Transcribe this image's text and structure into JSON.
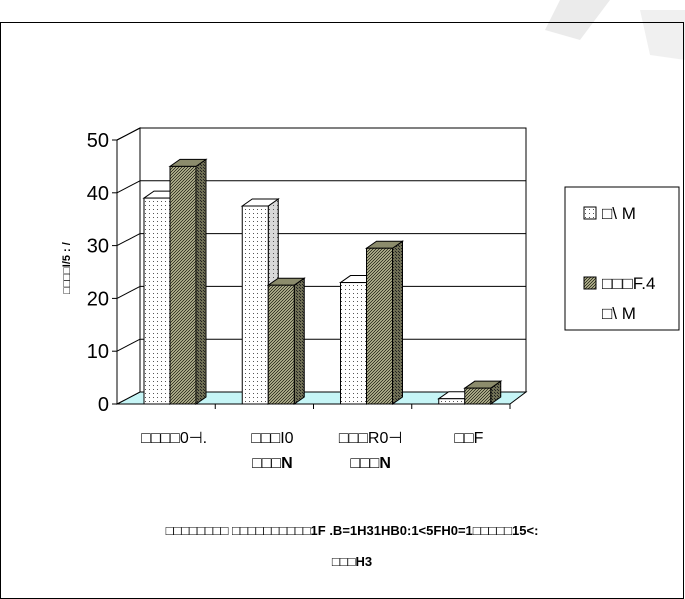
{
  "chart_data": {
    "type": "bar",
    "subtype": "3d-clustered-column",
    "categories": [
      "□□□□0⊣.",
      "□□□I0 N□□□",
      "□□□R0⊣ N□□□",
      "□□F"
    ],
    "category_lines": [
      [
        "□□□□0⊣."
      ],
      [
        "□□□I0",
        "□□□N"
      ],
      [
        "□□□R0⊣",
        "□□□N"
      ],
      [
        "□□F"
      ]
    ],
    "series": [
      {
        "name": "□\\ M",
        "name_lines": [
          "□\\ M"
        ],
        "values": [
          39,
          37.5,
          23,
          1
        ],
        "pattern": "dotted-white"
      },
      {
        "name": "□□□F.4 □\\ M",
        "name_lines": [
          "□□□F.4",
          "□\\ M"
        ],
        "values": [
          45,
          22.5,
          29.5,
          3
        ],
        "pattern": "hatched-gray"
      }
    ],
    "ylim": [
      0,
      50
    ],
    "yticks": [
      0,
      10,
      20,
      30,
      40,
      50
    ],
    "ylabel": "□□□□I/5 : /",
    "xlabel_lines": [
      "□□□□□□□□ □□□□□□□□□□1F .B=1H31HB0:1<5FH0=1□□□□□15<:",
      "□□□H3"
    ],
    "grid": true,
    "legend_position": "right",
    "colors": {
      "series1_fill": "#ffffff",
      "series2_fill": "#a6a684",
      "floor": "#c6f5f6",
      "grid": "#000000"
    }
  }
}
